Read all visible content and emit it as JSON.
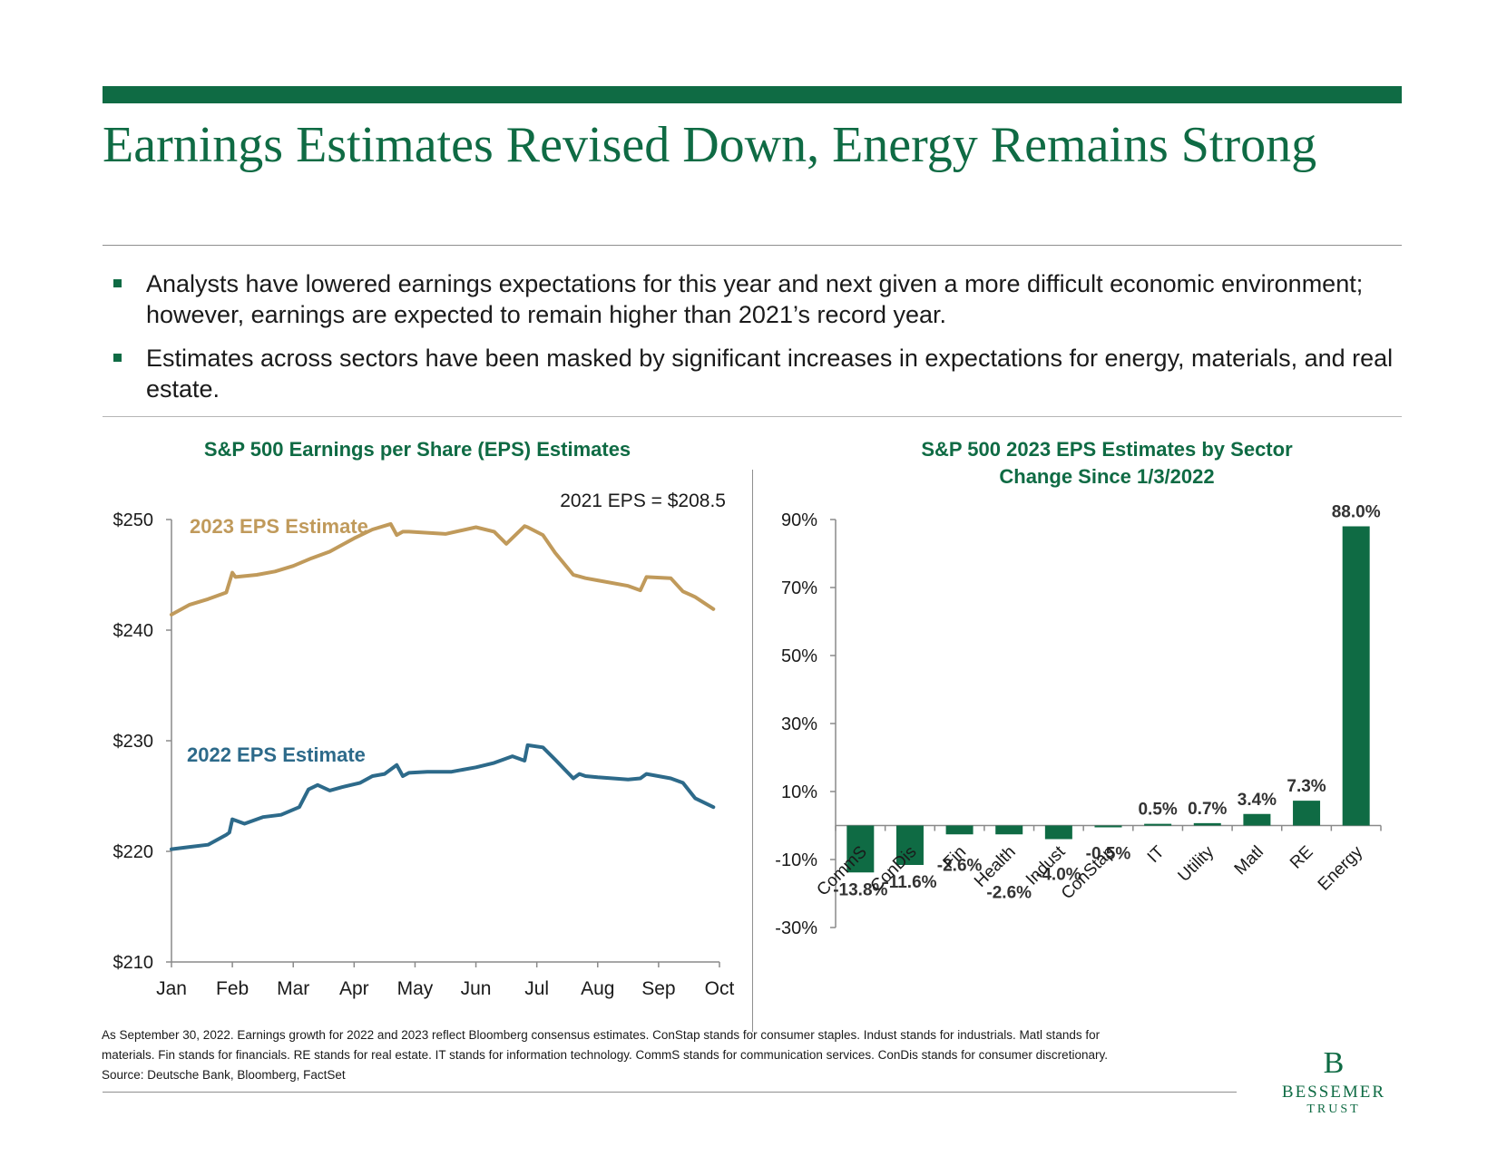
{
  "page": {
    "title": "Earnings Estimates Revised Down, Energy Remains Strong",
    "bullets": [
      "Analysts have lowered earnings expectations for this year and next given a more difficult economic environment; however, earnings are expected to remain higher than 2021’s record year.",
      "Estimates across sectors have been masked by significant increases in expectations for energy, materials, and real estate."
    ],
    "footnote": [
      "As September 30, 2022. Earnings growth for 2022 and 2023 reflect Bloomberg consensus estimates. ConStap stands for consumer staples. Indust stands for industrials. Matl stands for",
      "materials. Fin stands for financials. RE stands for real estate. IT stands for information technology. CommS stands for communication services. ConDis stands for consumer discretionary.",
      "Source: Deutsche Bank, Bloomberg, FactSet"
    ],
    "logo": {
      "mark": "B",
      "name": "BESSEMER",
      "sub": "TRUST"
    }
  },
  "colors": {
    "brand": "#0f6b44",
    "eps2023": "#c09a5b",
    "eps2022": "#2d6a8a"
  },
  "chart_data": [
    {
      "type": "line",
      "title": "S&P 500 Earnings per Share (EPS) Estimates",
      "annotation": "2021 EPS = $208.5",
      "x_ticks": [
        "Jan",
        "Feb",
        "Mar",
        "Apr",
        "May",
        "Jun",
        "Jul",
        "Aug",
        "Sep",
        "Oct"
      ],
      "x_range": [
        0,
        9
      ],
      "ylim": [
        210,
        250
      ],
      "y_ticks": [
        210,
        220,
        230,
        240,
        250
      ],
      "y_tick_labels": [
        "$210",
        "$220",
        "$230",
        "$240",
        "$250"
      ],
      "series": [
        {
          "name": "2023 EPS Estimate",
          "x": [
            0,
            0.3,
            0.6,
            0.9,
            1.0,
            1.05,
            1.4,
            1.7,
            2.0,
            2.3,
            2.6,
            3.0,
            3.3,
            3.6,
            3.7,
            3.8,
            3.9,
            4.2,
            4.5,
            5.0,
            5.3,
            5.5,
            5.8,
            5.85,
            6.1,
            6.3,
            6.6,
            6.8,
            7.0,
            7.5,
            7.7,
            7.8,
            8.2,
            8.4,
            8.6,
            8.9
          ],
          "y": [
            241.4,
            242.3,
            242.8,
            243.4,
            245.2,
            244.8,
            245.0,
            245.3,
            245.8,
            246.5,
            247.1,
            248.3,
            249.1,
            249.6,
            248.6,
            248.9,
            248.9,
            248.8,
            248.7,
            249.3,
            248.9,
            247.8,
            249.4,
            249.3,
            248.6,
            247.0,
            245.0,
            244.7,
            244.5,
            244.0,
            243.6,
            244.8,
            244.7,
            243.5,
            243.0,
            241.9
          ]
        },
        {
          "name": "2022 EPS Estimate",
          "x": [
            0,
            0.3,
            0.6,
            0.9,
            0.95,
            1.0,
            1.2,
            1.5,
            1.8,
            2.1,
            2.25,
            2.4,
            2.6,
            2.8,
            3.1,
            3.3,
            3.5,
            3.7,
            3.8,
            3.9,
            4.2,
            4.6,
            5.0,
            5.3,
            5.6,
            5.8,
            5.85,
            6.1,
            6.3,
            6.6,
            6.7,
            6.8,
            7.0,
            7.5,
            7.7,
            7.8,
            8.2,
            8.4,
            8.6,
            8.9
          ],
          "y": [
            220.2,
            220.4,
            220.6,
            221.5,
            221.7,
            222.9,
            222.5,
            223.1,
            223.3,
            224.0,
            225.6,
            226.0,
            225.5,
            225.8,
            226.2,
            226.8,
            227.0,
            227.8,
            226.8,
            227.1,
            227.2,
            227.2,
            227.6,
            228.0,
            228.6,
            228.2,
            229.6,
            229.4,
            228.3,
            226.6,
            227.0,
            226.8,
            226.7,
            226.5,
            226.6,
            227.0,
            226.6,
            226.2,
            224.8,
            224.0
          ]
        }
      ],
      "series_labels": [
        "2023 EPS Estimate",
        "2022 EPS Estimate"
      ]
    },
    {
      "type": "bar",
      "title": "S&P 500 2023 EPS Estimates by Sector",
      "subtitle": "Change Since 1/3/2022",
      "categories": [
        "CommS",
        "ConDis",
        "Fin",
        "Health",
        "Indust",
        "ConStap",
        "IT",
        "Utility",
        "Matl",
        "RE",
        "Energy"
      ],
      "values": [
        -13.8,
        -11.6,
        -2.6,
        -2.6,
        -4.0,
        -0.5,
        0.5,
        0.7,
        3.4,
        7.3,
        88.0
      ],
      "value_labels": [
        "-13.8%",
        "-11.6%",
        "-2.6%",
        "-2.6%",
        "-4.0%",
        "-0.5%",
        "0.5%",
        "0.7%",
        "3.4%",
        "7.3%",
        "88.0%"
      ],
      "ylim": [
        -30,
        90
      ],
      "y_ticks": [
        -30,
        -10,
        10,
        30,
        50,
        70,
        90
      ],
      "y_tick_labels": [
        "-30%",
        "-10%",
        "10%",
        "30%",
        "50%",
        "70%",
        "90%"
      ]
    }
  ]
}
